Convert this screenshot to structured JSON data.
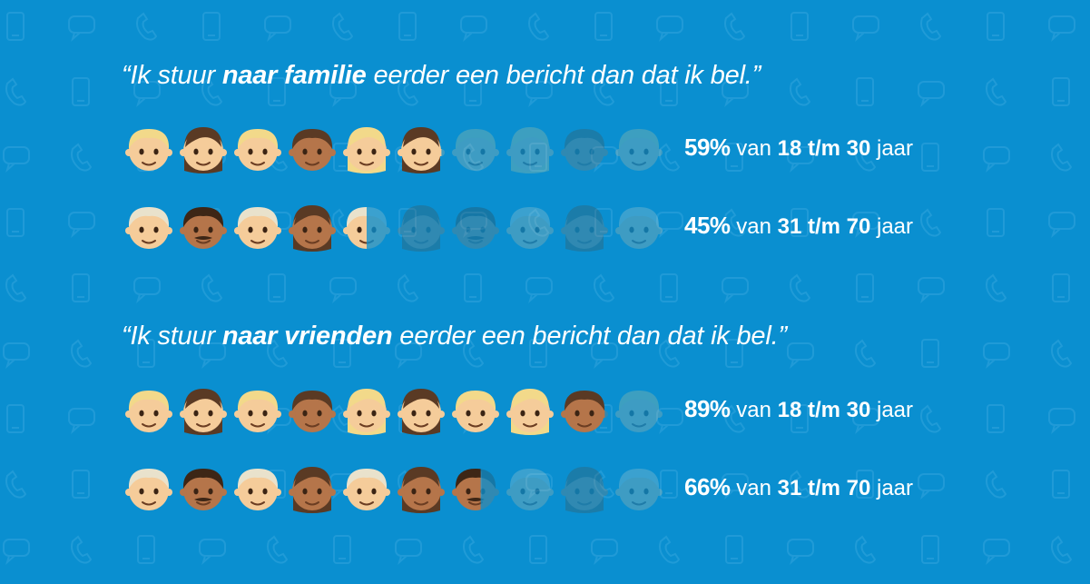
{
  "quotes": [
    {
      "prefix": "“Ik stuur ",
      "emphasis": "naar familie",
      "suffix": " eerder een bericht dan dat ik bel.”"
    },
    {
      "prefix": "“Ik stuur ",
      "emphasis": "naar vrienden",
      "suffix": " eerder een bericht dan dat ik bel.”"
    }
  ],
  "chart_data": {
    "type": "pictogram",
    "icons_per_row": 10,
    "groups": [
      {
        "quote_index": 0,
        "rows": [
          {
            "percent": 59,
            "label_pct": "59%",
            "label_van": "van",
            "label_age": "18 t/m 30",
            "label_unit": "jaar",
            "faces": [
              "boy-light",
              "girl-brown",
              "boy-light",
              "boy-brown",
              "girl-blonde",
              "girl-brown",
              "boy-light",
              "girl-blonde",
              "boy-brown",
              "boy-light"
            ]
          },
          {
            "percent": 45,
            "label_pct": "45%",
            "label_van": "van",
            "label_age": "31 t/m 70",
            "label_unit": "jaar",
            "faces": [
              "man-light",
              "man-brown",
              "man-light",
              "woman-brown",
              "man-light",
              "woman-brown",
              "man-brown",
              "man-light",
              "woman-brown",
              "man-light"
            ]
          }
        ]
      },
      {
        "quote_index": 1,
        "rows": [
          {
            "percent": 89,
            "label_pct": "89%",
            "label_van": "van",
            "label_age": "18 t/m 30",
            "label_unit": "jaar",
            "faces": [
              "boy-light",
              "girl-brown",
              "boy-light",
              "boy-brown",
              "girl-blonde",
              "girl-brown",
              "boy-light",
              "girl-blonde",
              "boy-brown",
              "boy-light"
            ]
          },
          {
            "percent": 66,
            "label_pct": "66%",
            "label_van": "van",
            "label_age": "31 t/m 70",
            "label_unit": "jaar",
            "faces": [
              "man-light",
              "man-brown",
              "man-light",
              "woman-brown",
              "man-light",
              "woman-brown",
              "man-brown",
              "man-light",
              "woman-brown",
              "man-light"
            ]
          }
        ]
      }
    ]
  },
  "colors": {
    "background": "#0a8fd0",
    "faded_icon": "#2c9fd6",
    "skin_light": "#f5cc9a",
    "skin_brown": "#b5754a",
    "hair_blonde": "#f2d98a",
    "hair_brown": "#5a3a24",
    "hair_gray": "#e9e2cc",
    "text": "#ffffff"
  }
}
